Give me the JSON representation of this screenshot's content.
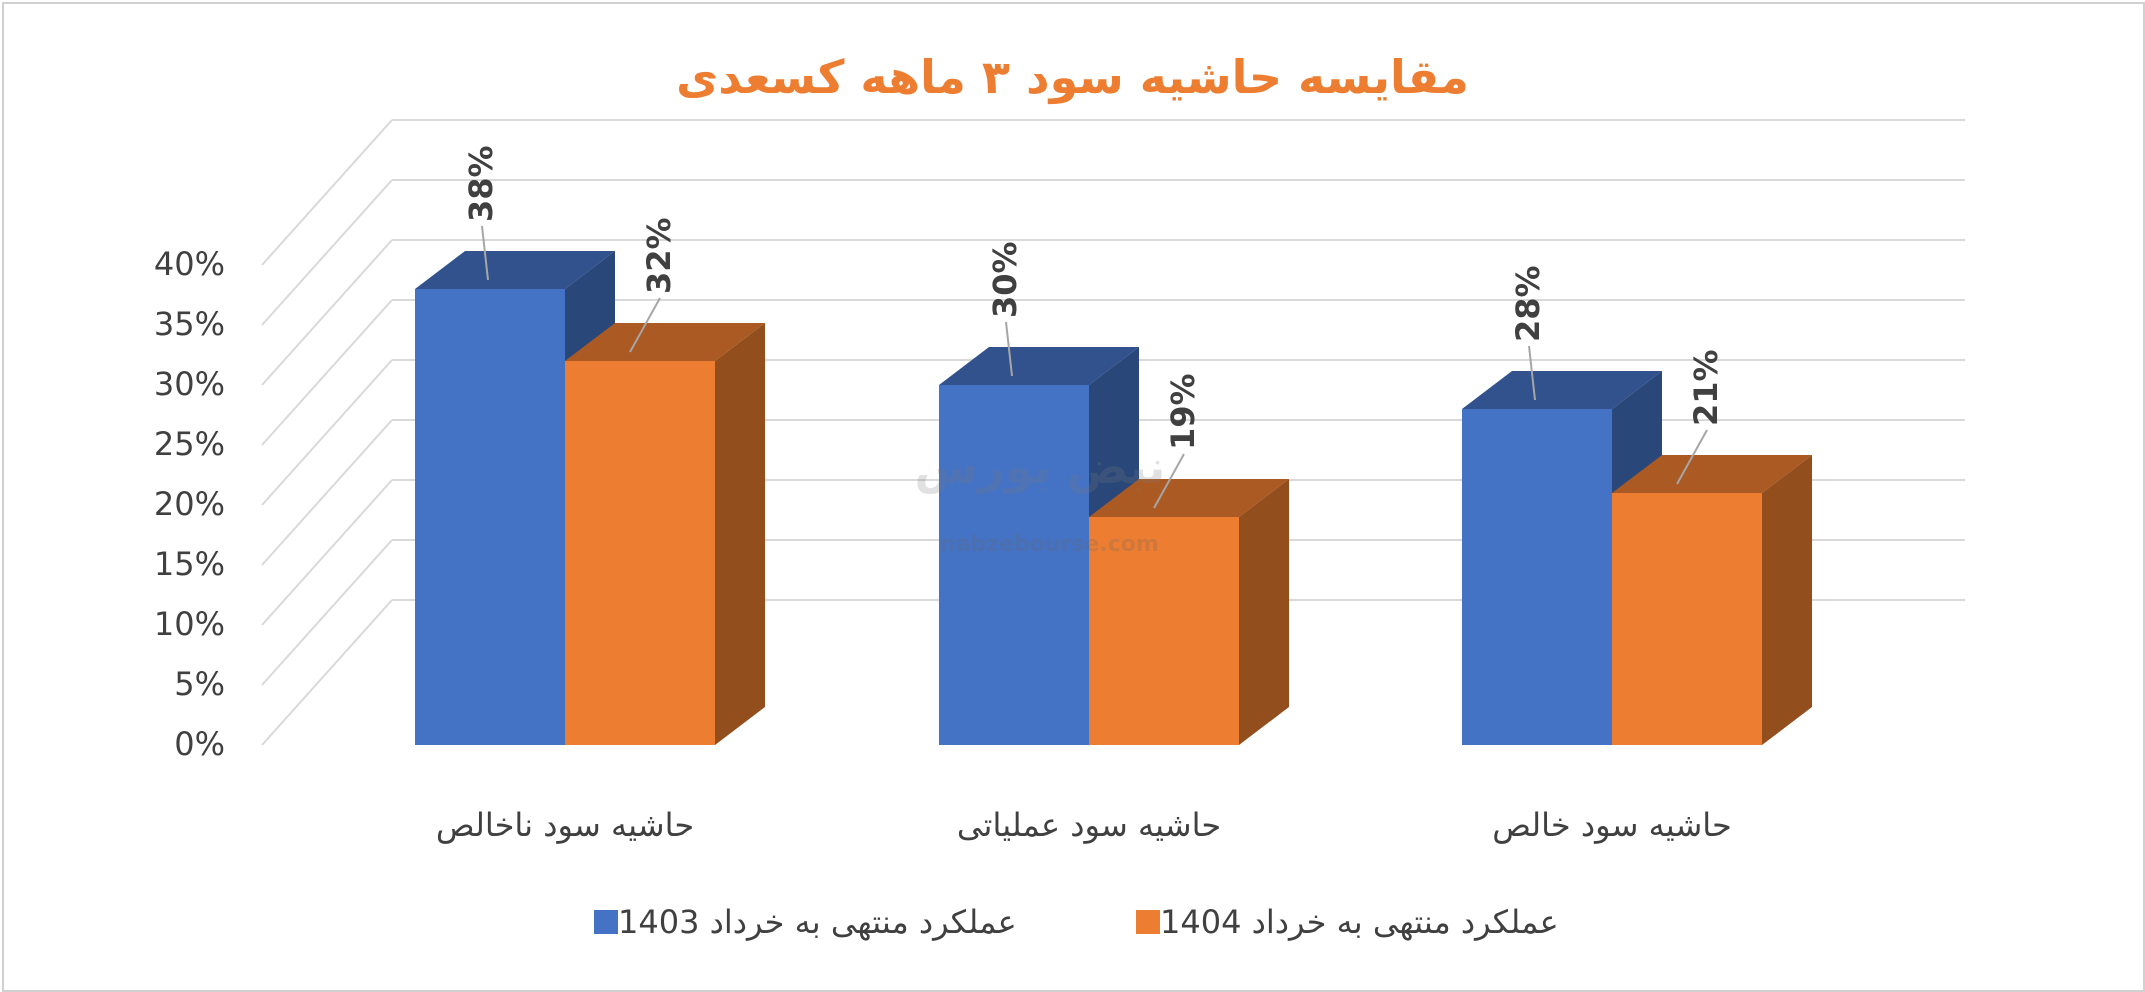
{
  "chart_data": {
    "type": "bar",
    "title": "مقایسه حاشیه سود ۳ ماهه کسعدی",
    "categories": [
      "حاشیه سود ناخالص",
      "حاشیه سود عملیاتی",
      "حاشیه سود خالص"
    ],
    "series": [
      {
        "name": "عملکرد منتهی به خرداد 1403",
        "values": [
          38,
          30,
          28
        ],
        "labels": [
          "38%",
          "30%",
          "28%"
        ],
        "color": "#4472C4"
      },
      {
        "name": "عملکرد منتهی به خرداد 1404",
        "values": [
          32,
          19,
          21
        ],
        "labels": [
          "32%",
          "19%",
          "21%"
        ],
        "color": "#ED7D31"
      }
    ],
    "ylim": [
      0,
      40
    ],
    "yticks": [
      "0%",
      "5%",
      "10%",
      "15%",
      "20%",
      "25%",
      "30%",
      "35%",
      "40%"
    ],
    "grid": true,
    "legend": "bottom",
    "style": "3d-column"
  },
  "watermark": {
    "brand": "نبض بورس",
    "site": "nabzebourse.com"
  }
}
